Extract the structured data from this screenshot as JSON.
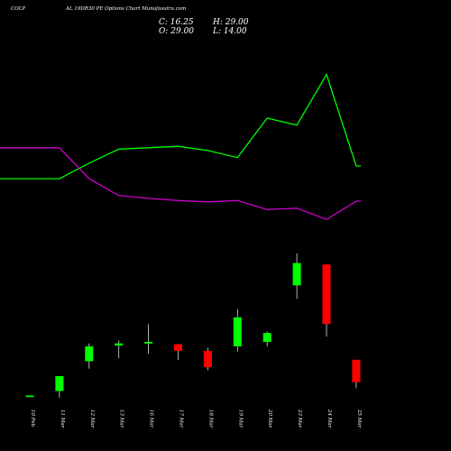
{
  "header": {
    "symbol": "COLP",
    "title": "AL 19DR30 PE Options Chart Munafasutra.com",
    "close": "C: 16.25",
    "open": "O: 29.00",
    "high": "H: 29.00",
    "low": "L: 14.00"
  },
  "colors": {
    "background": "#000000",
    "up": "#00ff00",
    "down": "#ff0000",
    "line_green": "#00ff00",
    "line_magenta": "#cc00cc",
    "text": "#ffffff"
  },
  "chart_data": {
    "type": "candlestick",
    "categories": [
      "10 Feb",
      "11 Mar",
      "12 Mar",
      "13 Mar",
      "16 Mar",
      "17 Mar",
      "18 Mar",
      "19 Mar",
      "20 Mar",
      "23 Mar",
      "24 Mar",
      "25 Mar"
    ],
    "candles": [
      {
        "date": "10 Feb",
        "open": 0.7,
        "high": 0.7,
        "low": 0.7,
        "close": 0.7
      },
      {
        "date": "11 Mar",
        "open": 1.0,
        "high": 2.0,
        "low": 0.55,
        "close": 2.0
      },
      {
        "date": "12 Mar",
        "open": 3.0,
        "high": 4.2,
        "low": 2.5,
        "close": 4.0
      },
      {
        "date": "13 Mar",
        "open": 4.05,
        "high": 4.4,
        "low": 3.2,
        "close": 4.2
      },
      {
        "date": "16 Mar",
        "open": 4.3,
        "high": 5.5,
        "low": 3.5,
        "close": 4.3
      },
      {
        "date": "17 Mar",
        "open": 4.15,
        "high": 4.15,
        "low": 3.1,
        "close": 3.7
      },
      {
        "date": "18 Mar",
        "open": 3.7,
        "high": 3.9,
        "low": 2.4,
        "close": 2.6
      },
      {
        "date": "19 Mar",
        "open": 4.0,
        "high": 6.5,
        "low": 3.65,
        "close": 5.95
      },
      {
        "date": "20 Mar",
        "open": 4.3,
        "high": 5.0,
        "low": 4.0,
        "close": 4.9
      },
      {
        "date": "23 Mar",
        "open": 8.1,
        "high": 10.25,
        "low": 7.2,
        "close": 9.6
      },
      {
        "date": "24 Mar",
        "open": 9.5,
        "high": 9.5,
        "low": 4.65,
        "close": 5.5
      },
      {
        "date": "25 Mar",
        "open": 3.1,
        "high": 3.1,
        "low": 1.2,
        "close": 1.6
      }
    ],
    "ylim": [
      0,
      12
    ],
    "lines": [
      {
        "color": "green",
        "values": [
          3.2,
          3.2,
          4.3,
          5.3,
          5.4,
          5.5,
          5.2,
          4.7,
          7.5,
          7.0,
          10.6,
          4.1
        ]
      },
      {
        "color": "magenta",
        "values": [
          5.4,
          5.4,
          3.2,
          2.0,
          1.8,
          1.65,
          1.55,
          1.65,
          1.0,
          1.1,
          0.3,
          1.6
        ]
      }
    ]
  }
}
